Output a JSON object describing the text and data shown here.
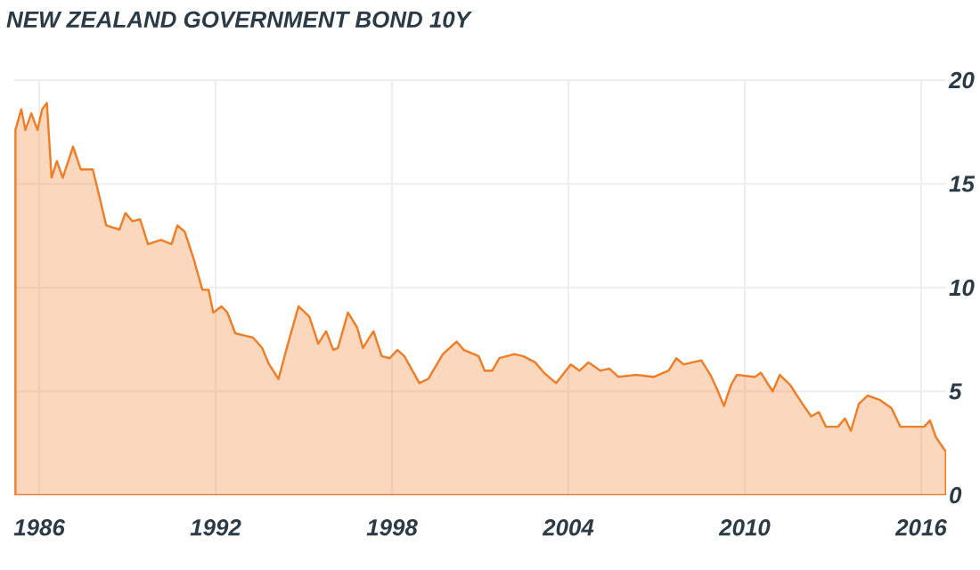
{
  "chart_data": {
    "type": "area",
    "title": "NEW ZEALAND GOVERNMENT BOND 10Y",
    "color": "#f07c24",
    "x": [
      1985.19,
      1985.39,
      1985.53,
      1985.73,
      1985.94,
      1986.1,
      1986.26,
      1986.42,
      1986.6,
      1986.8,
      1987.15,
      1987.41,
      1987.82,
      1987.96,
      1988.28,
      1988.73,
      1988.93,
      1989.17,
      1989.43,
      1989.7,
      1990.14,
      1990.5,
      1990.7,
      1990.95,
      1991.25,
      1991.55,
      1991.76,
      1991.92,
      1992.2,
      1992.4,
      1992.67,
      1992.97,
      1993.27,
      1993.58,
      1993.82,
      1994.14,
      1994.42,
      1994.82,
      1995.19,
      1995.49,
      1995.76,
      1996.0,
      1996.16,
      1996.5,
      1996.81,
      1997.01,
      1997.37,
      1997.65,
      1997.92,
      1998.18,
      1998.42,
      1998.93,
      1999.23,
      1999.73,
      2000.2,
      2000.44,
      2000.95,
      2001.15,
      2001.41,
      2001.65,
      2002.16,
      2002.46,
      2002.87,
      2003.17,
      2003.58,
      2004.08,
      2004.38,
      2004.68,
      2005.09,
      2005.39,
      2005.7,
      2006.3,
      2006.91,
      2007.41,
      2007.67,
      2007.92,
      2008.52,
      2008.83,
      2009.09,
      2009.29,
      2009.53,
      2009.73,
      2010.34,
      2010.55,
      2010.95,
      2011.19,
      2011.55,
      2011.96,
      2012.26,
      2012.52,
      2012.76,
      2013.17,
      2013.41,
      2013.61,
      2013.88,
      2014.18,
      2014.58,
      2014.99,
      2015.29,
      2015.7,
      2016.1,
      2016.3,
      2016.5,
      2016.84
    ],
    "values": [
      17.6,
      18.6,
      17.6,
      18.4,
      17.6,
      18.6,
      18.9,
      15.3,
      16.1,
      15.3,
      16.8,
      15.7,
      15.7,
      14.9,
      13.0,
      12.8,
      13.6,
      13.2,
      13.3,
      12.1,
      12.3,
      12.1,
      13.0,
      12.7,
      11.4,
      9.9,
      9.9,
      8.8,
      9.1,
      8.8,
      7.8,
      7.7,
      7.6,
      7.1,
      6.3,
      5.6,
      7.1,
      9.1,
      8.6,
      7.3,
      7.9,
      7.0,
      7.1,
      8.8,
      8.1,
      7.1,
      7.9,
      6.7,
      6.6,
      7.0,
      6.7,
      5.4,
      5.6,
      6.8,
      7.4,
      7.0,
      6.7,
      6.0,
      6.0,
      6.6,
      6.8,
      6.7,
      6.4,
      5.9,
      5.4,
      6.3,
      6.0,
      6.4,
      6.0,
      6.1,
      5.7,
      5.8,
      5.7,
      6.0,
      6.6,
      6.3,
      6.5,
      5.8,
      5.0,
      4.3,
      5.3,
      5.8,
      5.7,
      5.9,
      5.0,
      5.8,
      5.3,
      4.4,
      3.8,
      4.0,
      3.3,
      3.3,
      3.7,
      3.1,
      4.4,
      4.8,
      4.6,
      4.2,
      3.3,
      3.3,
      3.3,
      3.6,
      2.8,
      2.1
    ],
    "xlim": [
      1985.15,
      2016.85
    ],
    "ylim": [
      0,
      20
    ],
    "xticks": [
      1986,
      1992,
      1998,
      2004,
      2010,
      2016
    ],
    "yticks": [
      0,
      5,
      10,
      15,
      20
    ],
    "grid": true
  }
}
